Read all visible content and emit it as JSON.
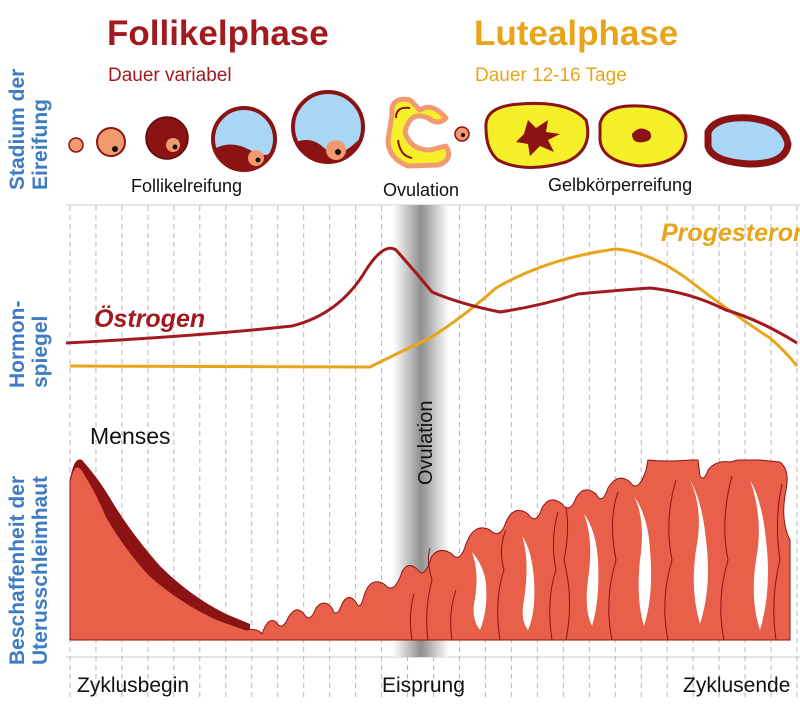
{
  "phases": {
    "follicular": {
      "title": "Follikelphase",
      "subtitle": "Dauer variabel"
    },
    "luteal": {
      "title": "Lutealphase",
      "subtitle": "Dauer 12-16 Tage"
    }
  },
  "side_labels": {
    "stage": [
      "Stadium der",
      "Eireifung"
    ],
    "hormone": [
      "Hormon-",
      "spiegel"
    ],
    "lining": [
      "Beschaffenheit der",
      "Uterusschleimhaut"
    ]
  },
  "stage_labels": {
    "maturation": "Follikelreifung",
    "ovulation": "Ovulation",
    "corpus_luteum": "Gelbkörperreifung"
  },
  "hormones": {
    "estrogen": {
      "name": "Östrogen",
      "color": "#a01a1f"
    },
    "progesterone": {
      "name": "Progesteron",
      "color": "#e8a51c"
    }
  },
  "ovulation_band_label": "Ovulation",
  "menses_label": "Menses",
  "axis": {
    "start": "Zyklusbegin",
    "middle": "Eisprung",
    "end": "Zyklusende"
  },
  "colors": {
    "follicular_title": "#a01a1f",
    "luteal_title": "#e8a51c",
    "side_label": "#3f7cc4",
    "lining": "#e8604a",
    "lining_dark": "#8b1313",
    "follicle_fluid": "#a9d6f5",
    "corpus_yellow": "#f5f02a",
    "egg": "#f29a6f"
  }
}
